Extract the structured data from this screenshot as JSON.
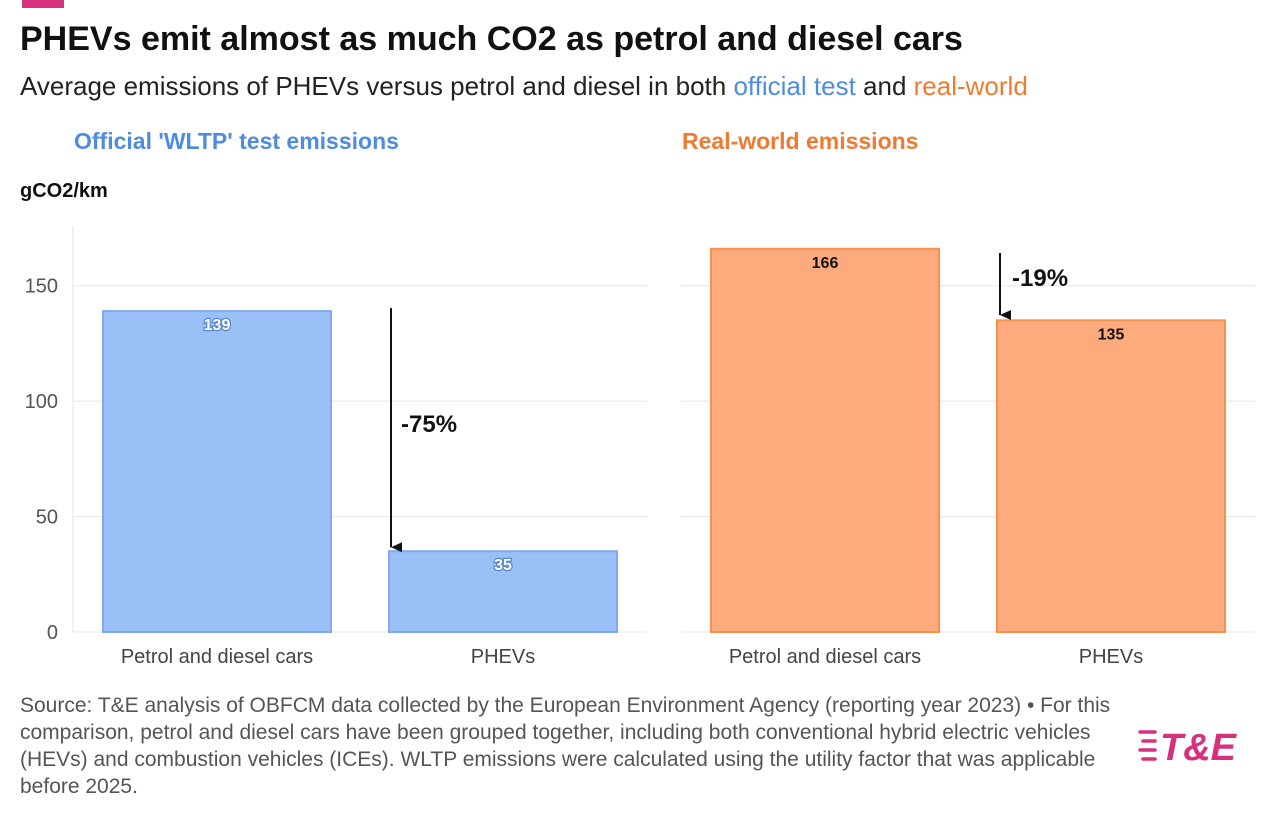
{
  "header": {
    "title": "PHEVs emit almost as much CO2 as petrol and diesel cars",
    "subtitle_prefix": "Average emissions of PHEVs versus petrol and diesel in both ",
    "subtitle_official": "official test",
    "subtitle_and": " and ",
    "subtitle_real": "real-world"
  },
  "footer": {
    "source": "Source: T&E analysis of OBFCM data collected by the European Environment Agency (reporting year 2023) • For this comparison, petrol and diesel cars have been grouped together, including both conventional hybrid electric vehicles (HEVs) and combustion vehicles (ICEs). WLTP emissions were calculated using the utility factor that was applicable before 2025."
  },
  "logo": {
    "text": "T&E"
  },
  "colors": {
    "official": "#4f8ce0",
    "official_bar": "#9bbff7",
    "official_bar_edge": "#7ea9ef",
    "real": "#ef7a32",
    "real_bar": "#fdab7c",
    "real_bar_edge": "#f5904f",
    "brand": "#d6307e"
  },
  "chart_data": [
    {
      "type": "bar",
      "title": "Official 'WLTP' test emissions",
      "ylabel": "gCO2/km",
      "categories": [
        "Petrol and diesel cars",
        "PHEVs"
      ],
      "values": [
        139,
        35
      ],
      "value_labels": [
        "139",
        "35"
      ],
      "ylim": [
        0,
        175
      ],
      "yticks": [
        0,
        50,
        100,
        150
      ],
      "grid": true,
      "annotation": {
        "text": "-75%",
        "from": 139,
        "to": 35
      }
    },
    {
      "type": "bar",
      "title": "Real-world emissions",
      "categories": [
        "Petrol and diesel cars",
        "PHEVs"
      ],
      "values": [
        166,
        135
      ],
      "value_labels": [
        "166",
        "135"
      ],
      "ylim": [
        0,
        175
      ],
      "yticks": [
        0,
        50,
        100,
        150
      ],
      "grid": true,
      "annotation": {
        "text": "-19%",
        "from": 166,
        "to": 135
      }
    }
  ]
}
